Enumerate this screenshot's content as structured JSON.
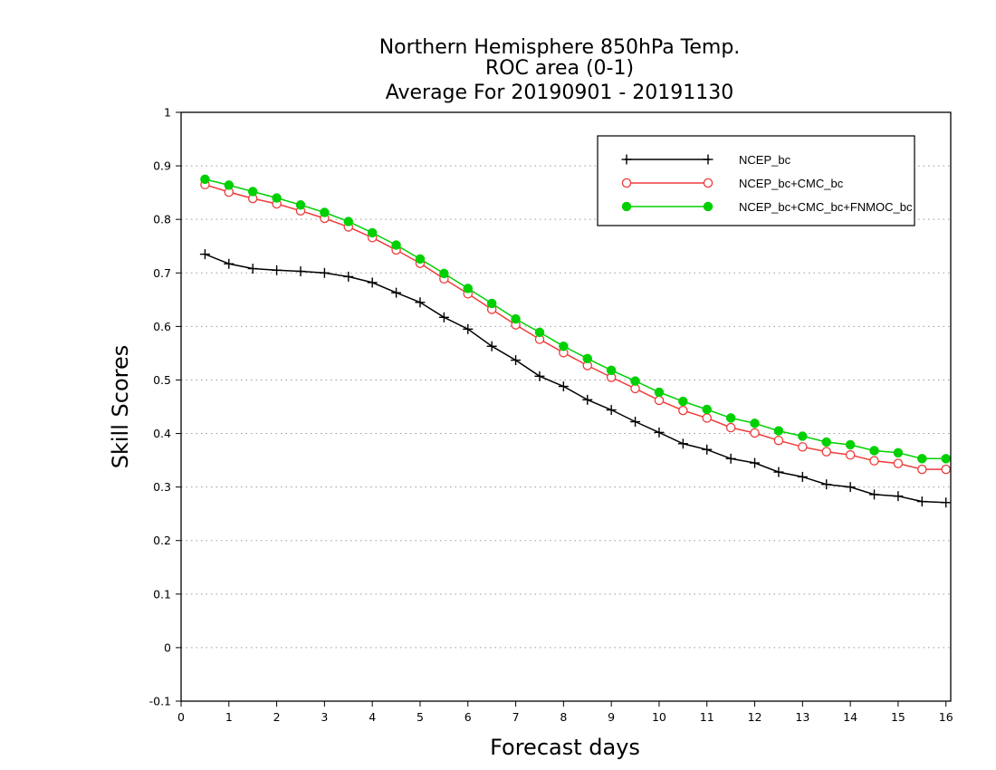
{
  "chart_data": {
    "type": "line",
    "title": "Northern Hemisphere 850hPa Temp.",
    "subtitle": "ROC area (0-1)",
    "subtitle2": "Average For 20190901 - 20191130",
    "xlabel": "Forecast days",
    "ylabel": "Skill Scores",
    "xlim": [
      0,
      16.1
    ],
    "ylim": [
      -0.1,
      1
    ],
    "xticks": [
      "0",
      "1",
      "2",
      "3",
      "4",
      "5",
      "6",
      "7",
      "8",
      "9",
      "10",
      "11",
      "12",
      "13",
      "14",
      "15",
      "16"
    ],
    "yticks": [
      "-0.1",
      "0",
      "0.1",
      "0.2",
      "0.3",
      "0.4",
      "0.5",
      "0.6",
      "0.7",
      "0.8",
      "0.9",
      "1"
    ],
    "grid": "horizontal dotted",
    "legend_position": "top-right",
    "x": [
      0.5,
      1,
      1.5,
      2,
      2.5,
      3,
      3.5,
      4,
      4.5,
      5,
      5.5,
      6,
      6.5,
      7,
      7.5,
      8,
      8.5,
      9,
      9.5,
      10,
      10.5,
      11,
      11.5,
      12,
      12.5,
      13,
      13.5,
      14,
      14.5,
      15,
      15.5,
      16
    ],
    "series": [
      {
        "name": "NCEP_bc",
        "color": "#000000",
        "marker": "plus",
        "values": [
          0.735,
          0.717,
          0.708,
          0.705,
          0.703,
          0.7,
          0.693,
          0.682,
          0.663,
          0.645,
          0.617,
          0.595,
          0.563,
          0.537,
          0.507,
          0.488,
          0.463,
          0.444,
          0.422,
          0.402,
          0.381,
          0.37,
          0.353,
          0.345,
          0.328,
          0.319,
          0.305,
          0.3,
          0.286,
          0.283,
          0.273,
          0.271
        ]
      },
      {
        "name": "NCEP_bc+CMC_bc",
        "color": "#ee3b3b",
        "marker": "open-circle",
        "values": [
          0.865,
          0.851,
          0.839,
          0.829,
          0.816,
          0.802,
          0.786,
          0.766,
          0.743,
          0.718,
          0.689,
          0.661,
          0.632,
          0.603,
          0.576,
          0.551,
          0.527,
          0.505,
          0.484,
          0.462,
          0.443,
          0.429,
          0.411,
          0.401,
          0.387,
          0.375,
          0.366,
          0.36,
          0.349,
          0.344,
          0.333,
          0.333
        ]
      },
      {
        "name": "NCEP_bc+CMC_bc+FNMOC_bc",
        "color": "#00d000",
        "marker": "filled-circle",
        "values": [
          0.875,
          0.864,
          0.852,
          0.84,
          0.827,
          0.813,
          0.796,
          0.775,
          0.752,
          0.726,
          0.699,
          0.671,
          0.643,
          0.614,
          0.589,
          0.563,
          0.54,
          0.518,
          0.498,
          0.477,
          0.46,
          0.445,
          0.429,
          0.419,
          0.405,
          0.395,
          0.384,
          0.379,
          0.368,
          0.364,
          0.353,
          0.353
        ]
      }
    ]
  }
}
